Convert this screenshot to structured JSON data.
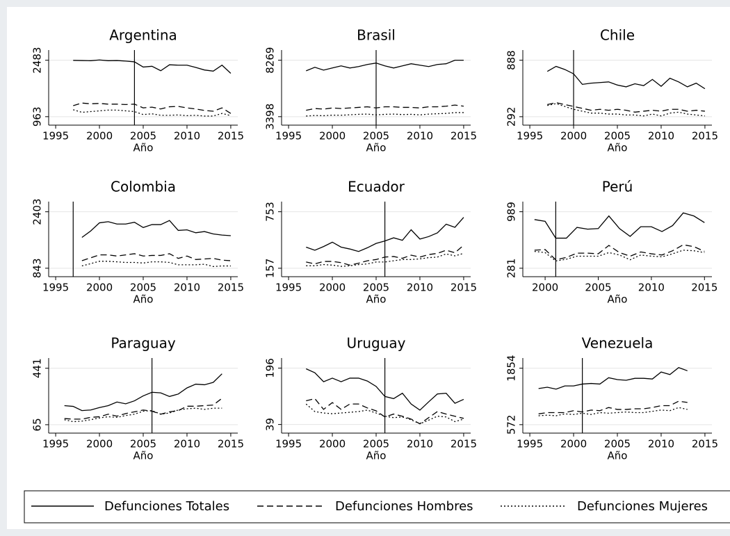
{
  "chart_data": [
    {
      "type": "line",
      "title": "Argentina",
      "x_label": "Año",
      "x": [
        1997,
        1998,
        1999,
        2000,
        2001,
        2002,
        2003,
        2004,
        2005,
        2006,
        2007,
        2008,
        2009,
        2010,
        2011,
        2012,
        2013,
        2014,
        2015
      ],
      "xlim": [
        1994.2,
        2015.8
      ],
      "xticks": [
        1995,
        2000,
        2005,
        2010,
        2015
      ],
      "ylim": [
        735,
        2757
      ],
      "yticks": [
        963,
        2483
      ],
      "grid": true,
      "xline": 2004,
      "series": [
        {
          "name": "Defunciones Totales",
          "color": "#000000",
          "dash": "solid",
          "values": [
            2480,
            2475,
            2470,
            2490,
            2470,
            2475,
            2460,
            2440,
            2300,
            2320,
            2200,
            2360,
            2350,
            2350,
            2290,
            2220,
            2190,
            2350,
            2130
          ]
        },
        {
          "name": "Defunciones Hombres",
          "color": "#000000",
          "dash": "dashed",
          "values": [
            1260,
            1330,
            1310,
            1320,
            1300,
            1300,
            1290,
            1300,
            1200,
            1220,
            1170,
            1230,
            1240,
            1200,
            1170,
            1130,
            1110,
            1200,
            1050
          ]
        },
        {
          "name": "Defunciones Mujeres",
          "color": "#000000",
          "dash": "dotted",
          "values": [
            1150,
            1080,
            1100,
            1120,
            1140,
            1140,
            1120,
            1100,
            1020,
            1040,
            1000,
            1000,
            1010,
            990,
            1000,
            980,
            980,
            1050,
            990
          ]
        }
      ]
    },
    {
      "type": "line",
      "title": "Brasil",
      "x_label": "Año",
      "x": [
        1997,
        1998,
        1999,
        2000,
        2001,
        2002,
        2003,
        2004,
        2005,
        2006,
        2007,
        2008,
        2009,
        2010,
        2011,
        2012,
        2013,
        2014,
        2015
      ],
      "xlim": [
        1994.2,
        2015.8
      ],
      "xticks": [
        1995,
        2000,
        2005,
        2010,
        2015
      ],
      "ylim": [
        2667,
        9146
      ],
      "yticks": [
        3398,
        8269
      ],
      "grid": true,
      "xline": 2005,
      "series": [
        {
          "color": "#000000",
          "dash": "solid",
          "values": [
            7354,
            7659,
            7415,
            7598,
            7781,
            7598,
            7720,
            7903,
            8025,
            7781,
            7598,
            7781,
            7964,
            7842,
            7720,
            7903,
            7964,
            8269,
            8269
          ]
        },
        {
          "color": "#000000",
          "dash": "dashed",
          "values": [
            3950,
            4100,
            4050,
            4150,
            4100,
            4150,
            4200,
            4250,
            4150,
            4250,
            4250,
            4200,
            4200,
            4150,
            4250,
            4250,
            4300,
            4400,
            4300
          ]
        },
        {
          "color": "#000000",
          "dash": "dotted",
          "values": [
            3450,
            3500,
            3480,
            3530,
            3520,
            3560,
            3600,
            3620,
            3550,
            3600,
            3620,
            3580,
            3600,
            3550,
            3620,
            3650,
            3680,
            3750,
            3750
          ]
        }
      ]
    },
    {
      "type": "line",
      "title": "Chile",
      "x_label": "Año",
      "x": [
        1997,
        1998,
        1999,
        2000,
        2001,
        2002,
        2003,
        2004,
        2005,
        2006,
        2007,
        2008,
        2009,
        2010,
        2011,
        2012,
        2013,
        2014,
        2015
      ],
      "xlim": [
        1994.2,
        2015.8
      ],
      "xticks": [
        1995,
        2000,
        2005,
        2010,
        2015
      ],
      "ylim": [
        203,
        995
      ],
      "yticks": [
        292,
        888
      ],
      "grid": true,
      "xline": 2000,
      "series": [
        {
          "color": "#000000",
          "dash": "solid",
          "values": [
            770,
            823,
            790,
            744,
            633,
            646,
            652,
            659,
            626,
            607,
            639,
            620,
            685,
            613,
            698,
            659,
            607,
            646,
            587
          ]
        },
        {
          "color": "#000000",
          "dash": "dashed",
          "values": [
            420,
            440,
            420,
            400,
            380,
            360,
            370,
            360,
            370,
            360,
            340,
            350,
            360,
            350,
            370,
            370,
            350,
            360,
            350
          ]
        },
        {
          "color": "#000000",
          "dash": "dotted",
          "values": [
            410,
            430,
            400,
            370,
            350,
            330,
            330,
            320,
            320,
            310,
            310,
            300,
            320,
            300,
            330,
            340,
            320,
            310,
            300
          ]
        }
      ]
    },
    {
      "type": "line",
      "title": "Colombia",
      "x_label": "Año",
      "x": [
        1998,
        1999,
        2000,
        2001,
        2002,
        2003,
        2004,
        2005,
        2006,
        2007,
        2008,
        2009,
        2010,
        2011,
        2012,
        2013,
        2014,
        2015
      ],
      "xlim": [
        1994.2,
        2015.8
      ],
      "xticks": [
        1995,
        2000,
        2005,
        2010,
        2015
      ],
      "ylim": [
        609,
        2684
      ],
      "yticks": [
        843,
        2403
      ],
      "grid": true,
      "xline": 1997,
      "series": [
        {
          "color": "#000000",
          "dash": "solid",
          "values": [
            1695,
            1872,
            2097,
            2129,
            2065,
            2065,
            2113,
            1968,
            2049,
            2049,
            2161,
            1888,
            1904,
            1823,
            1856,
            1791,
            1759,
            1743
          ]
        },
        {
          "color": "#000000",
          "dash": "dashed",
          "values": [
            1051,
            1131,
            1212,
            1212,
            1180,
            1212,
            1244,
            1180,
            1196,
            1196,
            1244,
            1115,
            1180,
            1083,
            1099,
            1115,
            1067,
            1051
          ]
        },
        {
          "color": "#000000",
          "dash": "dotted",
          "values": [
            906,
            970,
            1035,
            1035,
            1019,
            1003,
            1003,
            987,
            1019,
            1019,
            1003,
            938,
            938,
            938,
            954,
            890,
            906,
            906
          ]
        }
      ]
    },
    {
      "type": "line",
      "title": "Ecuador",
      "x_label": "Año",
      "x": [
        1997,
        1998,
        1999,
        2000,
        2001,
        2002,
        2003,
        2004,
        2005,
        2006,
        2007,
        2008,
        2009,
        2010,
        2011,
        2012,
        2013,
        2014,
        2015
      ],
      "xlim": [
        1994.2,
        2015.8
      ],
      "xticks": [
        1995,
        2000,
        2005,
        2010,
        2015
      ],
      "ylim": [
        68,
        860
      ],
      "yticks": [
        157,
        753
      ],
      "grid": true,
      "xline": 2006,
      "series": [
        {
          "color": "#000000",
          "dash": "solid",
          "values": [
            380,
            347,
            386,
            432,
            380,
            360,
            334,
            373,
            419,
            445,
            478,
            452,
            563,
            465,
            491,
            530,
            622,
            589,
            694
          ]
        },
        {
          "color": "#000000",
          "dash": "dashed",
          "values": [
            223,
            203,
            229,
            229,
            216,
            190,
            210,
            236,
            249,
            275,
            281,
            262,
            295,
            275,
            301,
            314,
            347,
            321,
            400
          ]
        },
        {
          "color": "#000000",
          "dash": "dotted",
          "values": [
            183,
            183,
            196,
            190,
            177,
            183,
            196,
            203,
            223,
            223,
            236,
            249,
            249,
            256,
            269,
            275,
            308,
            288,
            314
          ]
        }
      ]
    },
    {
      "type": "line",
      "title": "Perú",
      "x_label": "Año",
      "x": [
        1999,
        2000,
        2001,
        2002,
        2003,
        2004,
        2005,
        2006,
        2007,
        2008,
        2009,
        2010,
        2011,
        2012,
        2013,
        2014,
        2015
      ],
      "xlim": [
        1997.9,
        2015.7
      ],
      "xticks": [
        2000,
        2005,
        2010,
        2015
      ],
      "ylim": [
        175,
        1116
      ],
      "yticks": [
        281,
        989
      ],
      "grid": true,
      "xline": 2001,
      "series": [
        {
          "color": "#000000",
          "dash": "solid",
          "values": [
            891,
            869,
            658,
            658,
            793,
            771,
            778,
            936,
            778,
            680,
            801,
            801,
            741,
            816,
            974,
            936,
            853
          ]
        },
        {
          "color": "#000000",
          "dash": "dashed",
          "values": [
            507,
            515,
            387,
            417,
            470,
            470,
            462,
            567,
            477,
            432,
            485,
            462,
            447,
            500,
            575,
            552,
            492
          ]
        },
        {
          "color": "#000000",
          "dash": "dotted",
          "values": [
            492,
            477,
            372,
            394,
            432,
            432,
            432,
            477,
            447,
            387,
            447,
            432,
            424,
            462,
            507,
            500,
            477
          ]
        }
      ]
    },
    {
      "type": "line",
      "title": "Paraguay",
      "x_label": "Año",
      "x": [
        1996,
        1997,
        1998,
        1999,
        2000,
        2001,
        2002,
        2003,
        2004,
        2005,
        2006,
        2007,
        2008,
        2009,
        2010,
        2011,
        2012,
        2013,
        2014
      ],
      "xlim": [
        1994.2,
        2015.8
      ],
      "xticks": [
        1995,
        2000,
        2005,
        2010,
        2015
      ],
      "ylim": [
        9,
        509
      ],
      "yticks": [
        65,
        441
      ],
      "grid": true,
      "xline": 2006,
      "series": [
        {
          "color": "#000000",
          "dash": "solid",
          "values": [
            192,
            187,
            159,
            163,
            179,
            192,
            216,
            204,
            224,
            257,
            281,
            277,
            253,
            269,
            310,
            335,
            331,
            347,
            404
          ]
        },
        {
          "color": "#000000",
          "dash": "dashed",
          "values": [
            106,
            102,
            102,
            114,
            118,
            135,
            122,
            139,
            151,
            163,
            155,
            135,
            151,
            159,
            188,
            188,
            192,
            196,
            241
          ]
        },
        {
          "color": "#000000",
          "dash": "dotted",
          "values": [
            98,
            85,
            89,
            98,
            110,
            118,
            114,
            126,
            135,
            155,
            159,
            135,
            143,
            163,
            171,
            175,
            167,
            175,
            175
          ]
        }
      ]
    },
    {
      "type": "line",
      "title": "Uruguay",
      "x_label": "Año",
      "x": [
        1997,
        1998,
        1999,
        2000,
        2001,
        2002,
        2003,
        2004,
        2005,
        2006,
        2007,
        2008,
        2009,
        2010,
        2011,
        2012,
        2013,
        2014,
        2015
      ],
      "xlim": [
        1994.2,
        2015.8
      ],
      "xticks": [
        1995,
        2000,
        2005,
        2010,
        2015
      ],
      "ylim": [
        15,
        224
      ],
      "yticks": [
        39,
        196
      ],
      "grid": true,
      "xline": 2006,
      "series": [
        {
          "color": "#000000",
          "dash": "solid",
          "values": [
            194,
            183,
            158,
            168,
            158,
            168,
            168,
            160,
            145,
            117,
            111,
            126,
            96,
            79,
            102,
            124,
            126,
            98,
            109
          ]
        },
        {
          "color": "#000000",
          "dash": "dashed",
          "values": [
            105,
            111,
            81,
            100,
            81,
            96,
            96,
            85,
            77,
            60,
            68,
            62,
            54,
            41,
            58,
            75,
            68,
            62,
            56
          ]
        },
        {
          "color": "#000000",
          "dash": "dotted",
          "values": [
            96,
            75,
            71,
            69,
            71,
            73,
            75,
            79,
            71,
            62,
            58,
            60,
            52,
            41,
            51,
            62,
            60,
            47,
            54
          ]
        }
      ]
    },
    {
      "type": "line",
      "title": "Venezuela",
      "x_label": "Año",
      "x": [
        1996,
        1997,
        1998,
        1999,
        2000,
        2001,
        2002,
        2003,
        2004,
        2005,
        2006,
        2007,
        2008,
        2009,
        2010,
        2011,
        2012,
        2013
      ],
      "xlim": [
        1994.2,
        2015.8
      ],
      "xticks": [
        1995,
        2000,
        2005,
        2010,
        2015
      ],
      "ylim": [
        380,
        2085
      ],
      "yticks": [
        572,
        1854
      ],
      "grid": true,
      "xline": 2001,
      "series": [
        {
          "color": "#000000",
          "dash": "solid",
          "values": [
            1393,
            1422,
            1379,
            1451,
            1451,
            1494,
            1508,
            1494,
            1638,
            1595,
            1580,
            1624,
            1624,
            1609,
            1768,
            1710,
            1868,
            1796
          ]
        },
        {
          "color": "#000000",
          "dash": "dashed",
          "values": [
            817,
            846,
            846,
            846,
            889,
            860,
            903,
            889,
            961,
            918,
            918,
            932,
            932,
            961,
            1004,
            1004,
            1105,
            1076
          ]
        },
        {
          "color": "#000000",
          "dash": "dotted",
          "values": [
            774,
            788,
            774,
            817,
            803,
            832,
            803,
            846,
            832,
            846,
            860,
            846,
            846,
            875,
            904,
            889,
            961,
            918
          ]
        }
      ]
    }
  ]
}
